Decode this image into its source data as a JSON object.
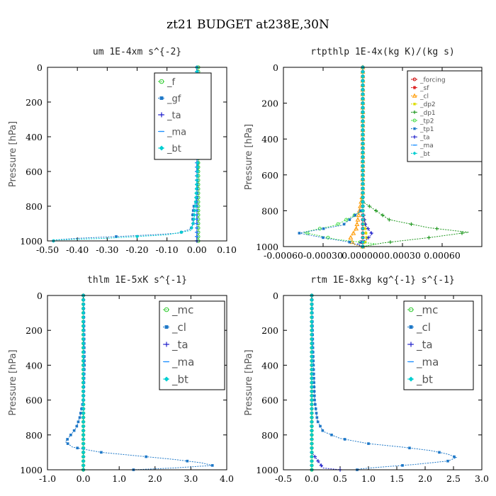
{
  "figure_title": "zt21  BUDGET at238E,30N",
  "chart_data": [
    {
      "type": "line",
      "title": "um   1E-4xm s^{-2}",
      "ylabel": "Pressure [hPa]",
      "xlim": [
        -0.5,
        0.1
      ],
      "ylim": [
        1000,
        0
      ],
      "xticks": [
        "-0.50",
        "-0.40",
        "-0.30",
        "-0.20",
        "-0.10",
        "0.00",
        "0.10"
      ],
      "xtick_values": [
        -0.5,
        -0.4,
        -0.3,
        -0.2,
        -0.1,
        0.0,
        0.1
      ],
      "yticks": [
        "0",
        "200",
        "400",
        "600",
        "800",
        "1000"
      ],
      "ytick_values": [
        0,
        200,
        400,
        600,
        800,
        1000
      ],
      "legend": {
        "position": "top-right",
        "entries": [
          "_f",
          "_gf",
          "_ta",
          "_ma",
          "_bt"
        ]
      },
      "series": [
        {
          "name": "_f",
          "color": "#33cc33",
          "marker": "circle",
          "x": [
            0.005,
            0.005,
            0.005,
            0.005,
            0.005,
            0.005,
            0.005
          ],
          "y": [
            0,
            150,
            300,
            500,
            700,
            900,
            1000
          ]
        },
        {
          "name": "_gf",
          "color": "#1e78c8",
          "marker": "square",
          "x": [
            0.0,
            0.01,
            0.012,
            0.008,
            0.005,
            0.002,
            0.0,
            -0.01,
            -0.015,
            -0.012,
            -0.02,
            -0.06,
            -0.15,
            -0.27,
            -0.4,
            -0.48
          ],
          "y": [
            0,
            120,
            250,
            330,
            450,
            600,
            760,
            800,
            860,
            900,
            930,
            955,
            965,
            975,
            985,
            995
          ]
        },
        {
          "name": "_ta",
          "color": "#1a1acc",
          "marker": "plus",
          "x": [
            0,
            0,
            0,
            0,
            0,
            0
          ],
          "y": [
            0,
            200,
            400,
            600,
            800,
            1000
          ]
        },
        {
          "name": "_ma",
          "color": "#1e90ff",
          "marker": "dash",
          "x": [
            0,
            0,
            0,
            0,
            0,
            0
          ],
          "y": [
            0,
            200,
            400,
            600,
            800,
            1000
          ]
        },
        {
          "name": "_bt",
          "color": "#00ced1",
          "marker": "diamond",
          "x": [
            0,
            0.002,
            0.004,
            0.002,
            -0.005,
            -0.01,
            -0.02,
            -0.1,
            -0.3,
            -0.48
          ],
          "y": [
            0,
            200,
            400,
            600,
            800,
            880,
            940,
            965,
            985,
            995
          ]
        }
      ]
    },
    {
      "type": "line",
      "title": "rtpthlp   1E-4x(kg K)/(kg s)",
      "ylabel": "Pressure [hPa]",
      "xlim": [
        -0.0006,
        0.0009
      ],
      "ylim": [
        1000,
        0
      ],
      "xticks": [
        "-0.00060",
        "-0.00030",
        "0.000000",
        "0.00030",
        "0.00060"
      ],
      "xtick_values": [
        -0.0006,
        -0.0003,
        0.0,
        0.0003,
        0.0006
      ],
      "yticks": [
        "0",
        "200",
        "400",
        "600",
        "800",
        "1000"
      ],
      "ytick_values": [
        0,
        200,
        400,
        600,
        800,
        1000
      ],
      "legend": {
        "position": "top-right",
        "entries": [
          "_forcing",
          "_sf",
          "_cl",
          "_dp2",
          "_dp1",
          "_tp2",
          "_tp1",
          "_ta",
          "_ma",
          "_bt"
        ]
      },
      "series": [
        {
          "name": "_forcing",
          "color": "#cc0000",
          "marker": "circle",
          "x": [
            0,
            0,
            0,
            0,
            0,
            0
          ],
          "y": [
            0,
            200,
            400,
            600,
            800,
            1000
          ]
        },
        {
          "name": "_sf",
          "color": "#dd2222",
          "marker": "star",
          "x": [
            0,
            0,
            0,
            0,
            0,
            0
          ],
          "y": [
            0,
            200,
            400,
            600,
            800,
            1000
          ]
        },
        {
          "name": "_cl",
          "color": "#ff9900",
          "marker": "triangle",
          "x": [
            0,
            0.0,
            -5e-05,
            -0.0001,
            -6e-05,
            0.0
          ],
          "y": [
            0,
            700,
            900,
            960,
            990,
            1000
          ]
        },
        {
          "name": "_dp2",
          "color": "#dddd00",
          "marker": "square",
          "x": [
            0,
            0,
            2e-05,
            3e-05,
            0.0
          ],
          "y": [
            0,
            800,
            900,
            960,
            1000
          ]
        },
        {
          "name": "_dp1",
          "color": "#229922",
          "marker": "plus",
          "x": [
            0,
            0.0,
            0.0002,
            0.0005,
            0.0008,
            0.0005,
            0.00015,
            0.0
          ],
          "y": [
            0,
            750,
            850,
            895,
            920,
            950,
            980,
            1000
          ]
        },
        {
          "name": "_tp2",
          "color": "#44dd44",
          "marker": "circle",
          "x": [
            0,
            0.0,
            -0.0002,
            -0.00045,
            -0.0002,
            0.0001,
            0.0
          ],
          "y": [
            0,
            800,
            880,
            920,
            960,
            985,
            1000
          ]
        },
        {
          "name": "_tp1",
          "color": "#1e78c8",
          "marker": "square",
          "x": [
            0,
            0.0,
            -0.00015,
            -0.00048,
            -0.0003,
            -0.0001,
            0.0
          ],
          "y": [
            0,
            790,
            880,
            925,
            950,
            975,
            1000
          ]
        },
        {
          "name": "_ta",
          "color": "#2222cc",
          "marker": "plus",
          "x": [
            0,
            0.0,
            2e-05,
            7e-05,
            3e-05,
            -4e-05,
            0.0
          ],
          "y": [
            0,
            800,
            880,
            930,
            960,
            985,
            1000
          ]
        },
        {
          "name": "_ma",
          "color": "#1e90ff",
          "marker": "dash",
          "x": [
            0,
            0,
            0,
            0,
            0
          ],
          "y": [
            0,
            300,
            600,
            900,
            1000
          ]
        },
        {
          "name": "_bt",
          "color": "#00ced1",
          "marker": "diamond",
          "x": [
            0,
            0,
            0,
            0,
            0
          ],
          "y": [
            0,
            300,
            600,
            900,
            1000
          ]
        }
      ]
    },
    {
      "type": "line",
      "title": "thlm   1E-5xK s^{-1}",
      "ylabel": "Pressure [hPa]",
      "xlim": [
        -1.0,
        4.0
      ],
      "ylim": [
        1000,
        0
      ],
      "xticks": [
        "-1.0",
        "0.0",
        "1.0",
        "2.0",
        "3.0",
        "4.0"
      ],
      "xtick_values": [
        -1.0,
        0.0,
        1.0,
        2.0,
        3.0,
        4.0
      ],
      "yticks": [
        "0",
        "200",
        "400",
        "600",
        "800",
        "1000"
      ],
      "ytick_values": [
        0,
        200,
        400,
        600,
        800,
        1000
      ],
      "legend": {
        "position": "top-right",
        "entries": [
          "_mc",
          "_cl",
          "_ta",
          "_ma",
          "_bt"
        ]
      },
      "series": [
        {
          "name": "_mc",
          "color": "#33cc33",
          "marker": "circle",
          "x": [
            0,
            0,
            0,
            0,
            0,
            0,
            0
          ],
          "y": [
            0,
            150,
            300,
            500,
            700,
            900,
            1000
          ]
        },
        {
          "name": "_cl",
          "color": "#1e78c8",
          "marker": "square",
          "x": [
            0,
            0.02,
            0.03,
            0.0,
            -0.1,
            -0.2,
            -0.35,
            -0.5,
            -0.3,
            0.5,
            1.5,
            2.5,
            3.3,
            3.6,
            2.5,
            1.4
          ],
          "y": [
            0,
            200,
            400,
            600,
            700,
            760,
            800,
            840,
            870,
            900,
            920,
            940,
            960,
            975,
            990,
            1000
          ]
        },
        {
          "name": "_ta",
          "color": "#2222cc",
          "marker": "plus",
          "x": [
            0,
            0,
            0,
            0,
            0,
            0
          ],
          "y": [
            0,
            200,
            400,
            600,
            800,
            1000
          ]
        },
        {
          "name": "_ma",
          "color": "#1e90ff",
          "marker": "dash",
          "x": [
            0,
            0,
            0,
            0,
            0,
            0
          ],
          "y": [
            0,
            200,
            400,
            600,
            800,
            1000
          ]
        },
        {
          "name": "_bt",
          "color": "#00ced1",
          "marker": "diamond",
          "x": [
            0,
            0,
            0,
            0,
            0,
            0
          ],
          "y": [
            0,
            200,
            400,
            600,
            800,
            1000
          ]
        }
      ]
    },
    {
      "type": "line",
      "title": "rtm   1E-8xkg kg^{-1} s^{-1}",
      "ylabel": "Pressure [hPa]",
      "xlim": [
        -0.5,
        3.0
      ],
      "ylim": [
        1000,
        0
      ],
      "xticks": [
        "-0.5",
        "0.0",
        "0.5",
        "1.0",
        "1.5",
        "2.0",
        "2.5",
        "3.0"
      ],
      "xtick_values": [
        -0.5,
        0.0,
        0.5,
        1.0,
        1.5,
        2.0,
        2.5,
        3.0
      ],
      "yticks": [
        "0",
        "200",
        "400",
        "600",
        "800",
        "1000"
      ],
      "ytick_values": [
        0,
        200,
        400,
        600,
        800,
        1000
      ],
      "legend": {
        "position": "top-right",
        "entries": [
          "_mc",
          "_cl",
          "_ta",
          "_ma",
          "_bt"
        ]
      },
      "series": [
        {
          "name": "_mc",
          "color": "#33cc33",
          "marker": "circle",
          "x": [
            0,
            0,
            0,
            0,
            0,
            0,
            0
          ],
          "y": [
            0,
            150,
            300,
            500,
            700,
            900,
            1000
          ]
        },
        {
          "name": "_cl",
          "color": "#1e78c8",
          "marker": "square",
          "x": [
            0,
            0.02,
            0.05,
            0.1,
            0.2,
            0.5,
            1.0,
            1.6,
            2.1,
            2.4,
            2.55,
            2.4,
            1.8,
            1.2,
            0.85,
            0.8
          ],
          "y": [
            0,
            300,
            600,
            720,
            780,
            820,
            850,
            870,
            890,
            910,
            930,
            950,
            970,
            985,
            995,
            1000
          ]
        },
        {
          "name": "_ta",
          "color": "#2222cc",
          "marker": "plus",
          "x": [
            0,
            0,
            0,
            0,
            0.2,
            0.5
          ],
          "y": [
            0,
            200,
            600,
            900,
            990,
            1000
          ]
        },
        {
          "name": "_ma",
          "color": "#1e90ff",
          "marker": "dash",
          "x": [
            0,
            0,
            0,
            0,
            0,
            0
          ],
          "y": [
            0,
            200,
            400,
            600,
            800,
            1000
          ]
        },
        {
          "name": "_bt",
          "color": "#00ced1",
          "marker": "diamond",
          "x": [
            0,
            0,
            0,
            0,
            0,
            0
          ],
          "y": [
            0,
            200,
            400,
            600,
            800,
            1000
          ]
        }
      ]
    }
  ]
}
